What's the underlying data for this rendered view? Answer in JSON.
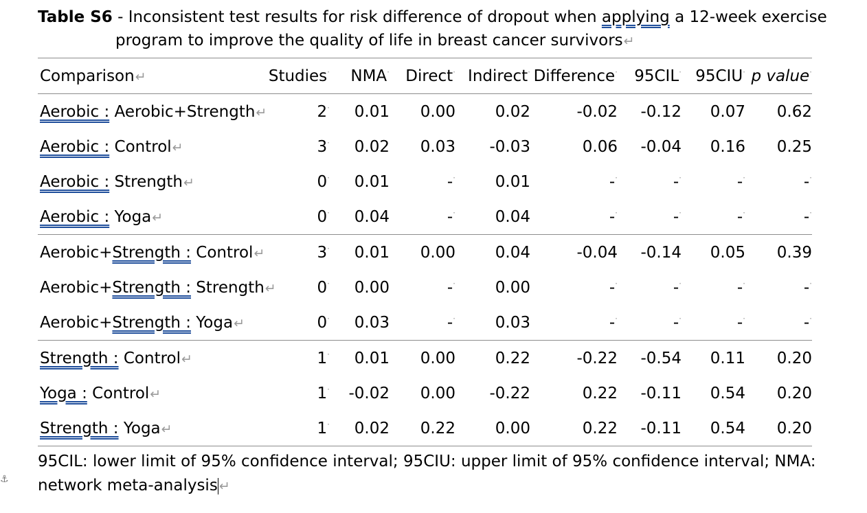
{
  "caption": {
    "label": "Table S6",
    "text_line1_before": " - Inconsistent test results for risk difference of dropout when ",
    "text_line1_underlined": "applying",
    "text_line1_after": " a 12-week exercise",
    "text_line2": "program to improve the quality of life in breast cancer survivors"
  },
  "table": {
    "headers": {
      "comparison": "Comparison",
      "studies": "Studies",
      "nma": "NMA",
      "direct": "Direct",
      "indirect": "Indirect",
      "difference": "Difference",
      "cil": "95CIL",
      "ciu": "95CIU",
      "p_value": "p value"
    },
    "rows": [
      {
        "first": "Aerobic :",
        "rest": " Aerobic+Strength",
        "studies": "2",
        "nma": "0.01",
        "direct": "0.00",
        "indirect": "0.02",
        "difference": "-0.02",
        "cil": "-0.12",
        "ciu": "0.07",
        "p": "0.62"
      },
      {
        "first": "Aerobic :",
        "rest": " Control",
        "studies": "3",
        "nma": "0.02",
        "direct": "0.03",
        "indirect": "-0.03",
        "difference": "0.06",
        "cil": "-0.04",
        "ciu": "0.16",
        "p": "0.25"
      },
      {
        "first": "Aerobic :",
        "rest": " Strength",
        "studies": "0",
        "nma": "0.01",
        "direct": "-",
        "indirect": "0.01",
        "difference": "-",
        "cil": "-",
        "ciu": "-",
        "p": "-"
      },
      {
        "first": "Aerobic :",
        "rest": " Yoga",
        "studies": "0",
        "nma": "0.04",
        "direct": "-",
        "indirect": "0.04",
        "difference": "-",
        "cil": "-",
        "ciu": "-",
        "p": "-"
      },
      {
        "prefix": "Aerobic+",
        "first": "Strength :",
        "rest": " Control",
        "studies": "3",
        "nma": "0.01",
        "direct": "0.00",
        "indirect": "0.04",
        "difference": "-0.04",
        "cil": "-0.14",
        "ciu": "0.05",
        "p": "0.39"
      },
      {
        "prefix": "Aerobic+",
        "first": "Strength :",
        "rest": " Strength",
        "studies": "0",
        "nma": "0.00",
        "direct": "-",
        "indirect": "0.00",
        "difference": "-",
        "cil": "-",
        "ciu": "-",
        "p": "-"
      },
      {
        "prefix": "Aerobic+",
        "first": "Strength :",
        "rest": " Yoga",
        "studies": "0",
        "nma": "0.03",
        "direct": "-",
        "indirect": "0.03",
        "difference": "-",
        "cil": "-",
        "ciu": "-",
        "p": "-"
      },
      {
        "first": "Strength :",
        "rest": " Control",
        "studies": "1",
        "nma": "0.01",
        "direct": "0.00",
        "indirect": "0.22",
        "difference": "-0.22",
        "cil": "-0.54",
        "ciu": "0.11",
        "p": "0.20"
      },
      {
        "first": "Yoga :",
        "rest": " Control",
        "studies": "1",
        "nma": "-0.02",
        "direct": "0.00",
        "indirect": "-0.22",
        "difference": "0.22",
        "cil": "-0.11",
        "ciu": "0.54",
        "p": "0.20"
      },
      {
        "first": "Strength :",
        "rest": " Yoga",
        "studies": "1",
        "nma": "0.02",
        "direct": "0.22",
        "indirect": "0.00",
        "difference": "0.22",
        "cil": "-0.11",
        "ciu": "0.54",
        "p": "0.20"
      }
    ]
  },
  "footnote": {
    "line1": "95CIL: lower limit of 95% confidence interval; 95CIU: upper limit of 95% confidence interval; NMA:",
    "line2": "network meta-analysis"
  },
  "marks": {
    "paragraph": "↵",
    "cell": "·"
  },
  "colors": {
    "rule": "#8c8c8c",
    "underline": "#1f4e9b",
    "formatting_marks": "#9a9a9a"
  }
}
